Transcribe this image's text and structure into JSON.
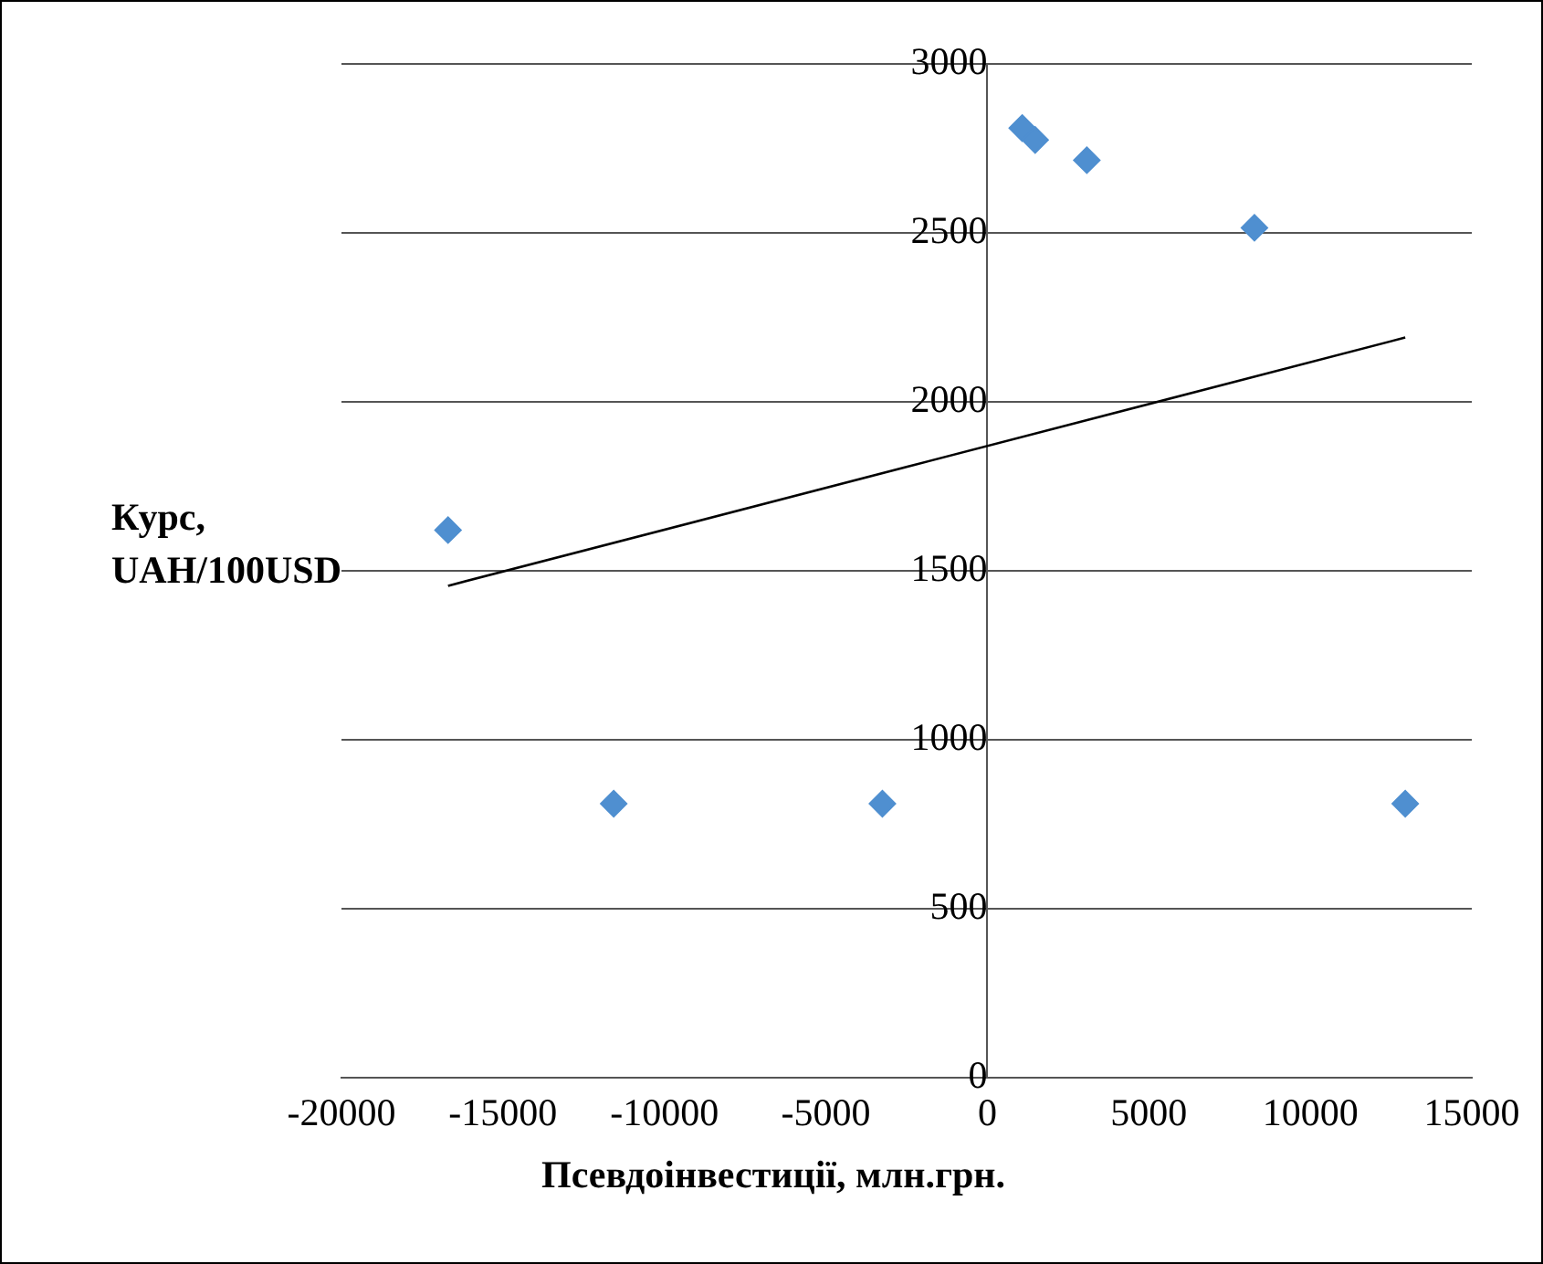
{
  "chart_data": {
    "type": "scatter",
    "xlabel": "Псевдоінвестиції, млн.грн.",
    "ylabel": "Курс,\nUAH/100USD",
    "xlim": [
      -20000,
      15000
    ],
    "xticks": [
      -20000,
      -15000,
      -10000,
      -5000,
      0,
      5000,
      10000,
      15000
    ],
    "ylim": [
      0,
      3000
    ],
    "yticks": [
      0,
      500,
      1000,
      1500,
      2000,
      2500,
      3000
    ],
    "grid": "y",
    "legend": false,
    "marker": "diamond",
    "series": [
      {
        "color": "#4f8fd0",
        "x": [
          -16700,
          -11570,
          -3250,
          1080,
          1480,
          3080,
          8270,
          12940
        ],
        "values": [
          1620,
          810,
          810,
          2810,
          2775,
          2715,
          2515,
          810
        ]
      },
      {
        "type": "line",
        "color": "#000000",
        "x": [
          -16700,
          12940
        ],
        "values": [
          1455,
          2190
        ],
        "marker": "none"
      }
    ]
  }
}
